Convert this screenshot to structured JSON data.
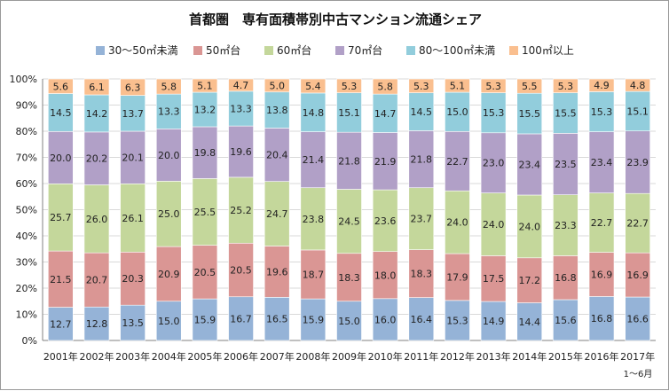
{
  "chart_data": {
    "type": "bar",
    "stacked": true,
    "title": "首都圏　専有面積帯別中古マンション流通シェア",
    "categories": [
      "2001年",
      "2002年",
      "2003年",
      "2004年",
      "2005年",
      "2006年",
      "2007年",
      "2008年",
      "2009年",
      "2010年",
      "2011年",
      "2012年",
      "2013年",
      "2014年",
      "2015年",
      "2016年",
      "2017年"
    ],
    "x_note": "1～6月",
    "ylim": [
      0,
      100
    ],
    "yticks": [
      "0%",
      "10%",
      "20%",
      "30%",
      "40%",
      "50%",
      "60%",
      "70%",
      "80%",
      "90%",
      "100%"
    ],
    "grid": true,
    "legend_position": "top",
    "series": [
      {
        "name": "30～50㎡未満",
        "color": "#95B3D7",
        "values": [
          12.7,
          12.8,
          13.5,
          15.0,
          15.9,
          16.7,
          16.5,
          15.9,
          15.0,
          16.0,
          16.4,
          15.3,
          14.9,
          14.4,
          15.6,
          16.8,
          16.6
        ]
      },
      {
        "name": "50㎡台",
        "color": "#DA9694",
        "values": [
          21.5,
          20.7,
          20.3,
          20.9,
          20.5,
          20.5,
          19.6,
          18.7,
          18.3,
          18.0,
          18.3,
          17.9,
          17.5,
          17.2,
          16.8,
          16.9,
          16.9
        ]
      },
      {
        "name": "60㎡台",
        "color": "#C4D79B",
        "values": [
          25.7,
          26.0,
          26.1,
          25.0,
          25.5,
          25.2,
          24.7,
          23.8,
          24.5,
          23.6,
          23.7,
          24.0,
          24.0,
          24.0,
          23.3,
          22.7,
          22.7
        ]
      },
      {
        "name": "70㎡台",
        "color": "#B1A0C7",
        "values": [
          20.0,
          20.2,
          20.1,
          20.0,
          19.8,
          19.6,
          20.4,
          21.4,
          21.8,
          21.9,
          21.8,
          22.7,
          23.0,
          23.4,
          23.5,
          23.4,
          23.9
        ]
      },
      {
        "name": "80～100㎡未満",
        "color": "#92CDDC",
        "values": [
          14.5,
          14.2,
          13.7,
          13.3,
          13.2,
          13.3,
          13.8,
          14.8,
          15.1,
          14.7,
          14.5,
          15.0,
          15.3,
          15.5,
          15.5,
          15.3,
          15.1
        ]
      },
      {
        "name": "100㎡以上",
        "color": "#FABF8F",
        "values": [
          5.6,
          6.1,
          6.3,
          5.8,
          5.1,
          4.7,
          5.0,
          5.4,
          5.3,
          5.8,
          5.3,
          5.1,
          5.3,
          5.5,
          5.3,
          4.9,
          4.8
        ]
      }
    ]
  }
}
